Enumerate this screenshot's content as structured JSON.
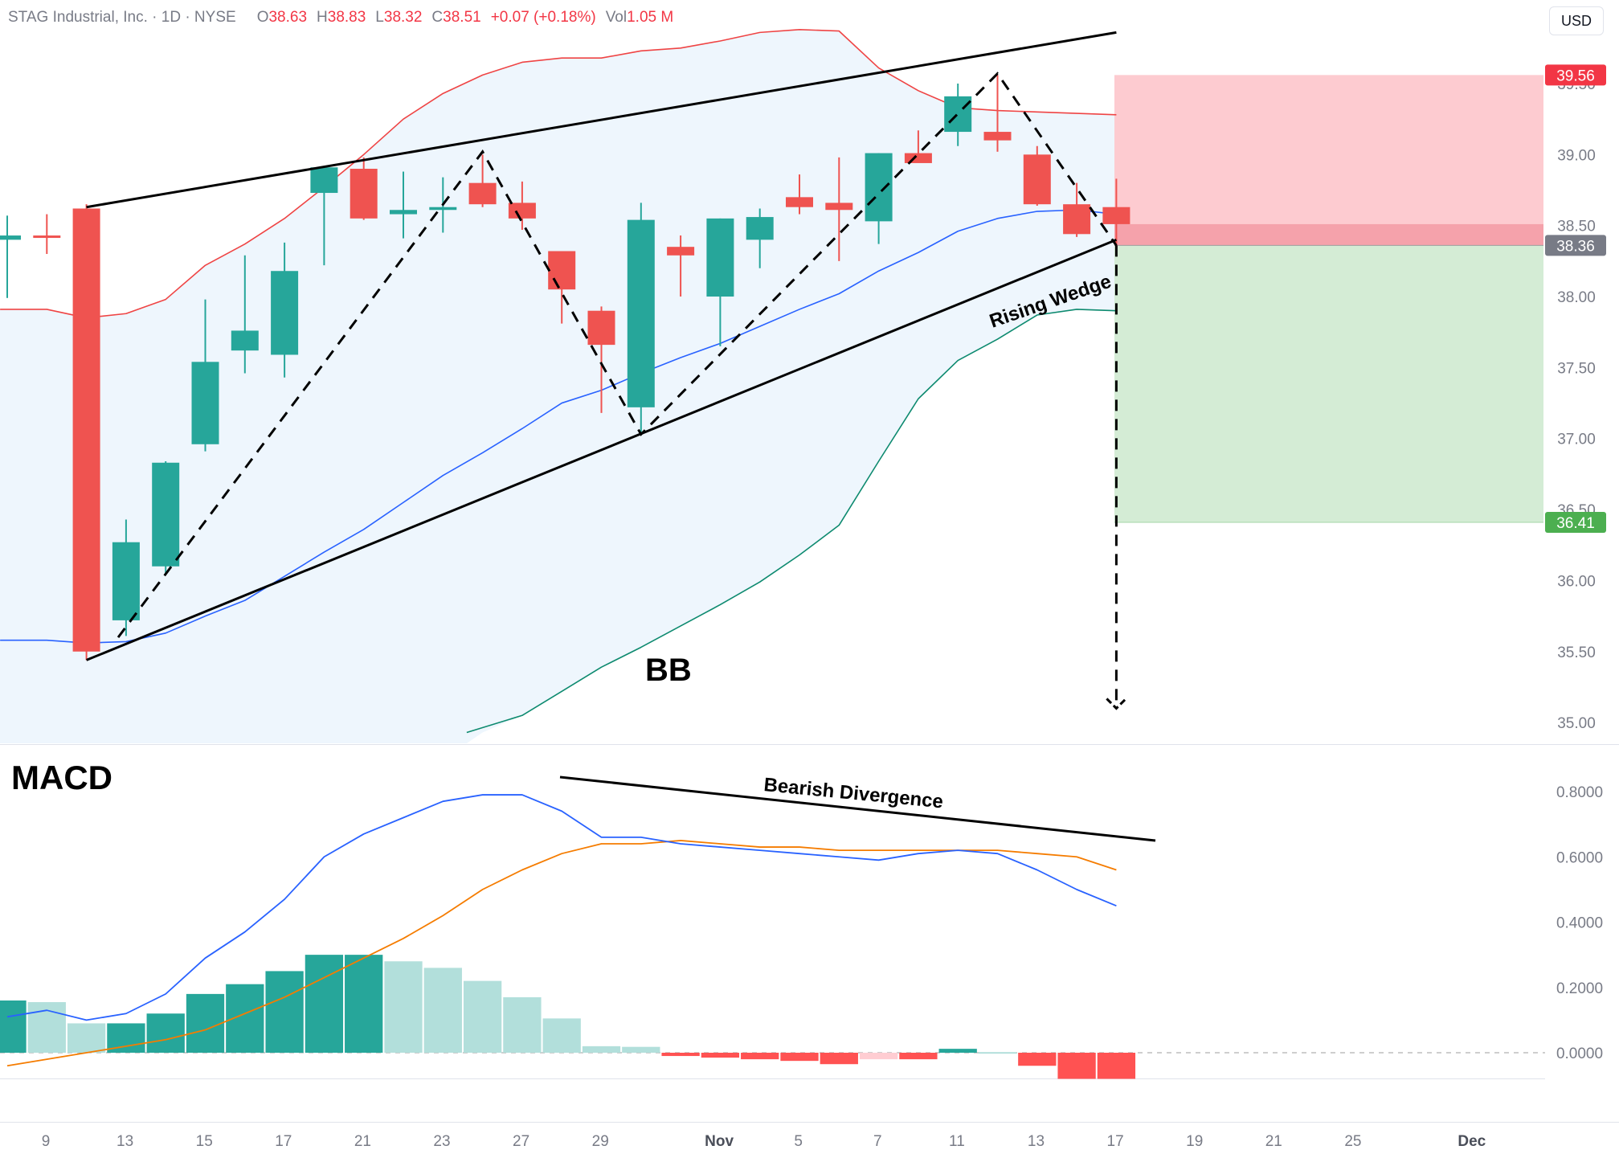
{
  "header": {
    "symbol_line": "STAG Industrial, Inc. · 1D · NYSE",
    "open_label": "O",
    "open": "38.63",
    "high_label": "H",
    "high": "38.83",
    "low_label": "L",
    "low": "38.32",
    "close_label": "C",
    "close": "38.51",
    "change": "+0.07 (+0.18%)",
    "vol_label": "Vol",
    "vol": "1.05 M"
  },
  "currency_button": "USD",
  "colors": {
    "up": "#26a69a",
    "down": "#ef5350",
    "bb_upper": "#ef4444",
    "bb_middle": "#2962ff",
    "bb_lower": "#0d8a6f",
    "bb_fill": "#eef6fd",
    "macd": "#2962ff",
    "signal": "#f57c00",
    "stop_zone": "#fdcbd0",
    "target_zone": "#d4ecd5",
    "entry_zone": "#f5a2ab"
  },
  "chart_data": [
    {
      "type": "candlestick",
      "title": "STAG Industrial, Inc. · 1D · NYSE",
      "annotation_bb": "BB",
      "wedge_label": "Rising Wedge",
      "x_tick_labels": [
        {
          "label": "9",
          "day": 0
        },
        {
          "label": "13",
          "day": 2
        },
        {
          "label": "15",
          "day": 4
        },
        {
          "label": "17",
          "day": 6
        },
        {
          "label": "21",
          "day": 8
        },
        {
          "label": "23",
          "day": 10
        },
        {
          "label": "27",
          "day": 12
        },
        {
          "label": "29",
          "day": 14
        },
        {
          "label": "Nov",
          "day": 17
        },
        {
          "label": "5",
          "day": 19
        },
        {
          "label": "7",
          "day": 21
        },
        {
          "label": "11",
          "day": 23
        },
        {
          "label": "13",
          "day": 25
        },
        {
          "label": "17",
          "day": 27
        },
        {
          "label": "19",
          "day": 29
        },
        {
          "label": "21",
          "day": 31
        },
        {
          "label": "25",
          "day": 33
        },
        {
          "label": "Dec",
          "day": 36
        }
      ],
      "y_ticks": [
        35.0,
        35.5,
        36.0,
        36.5,
        37.0,
        37.5,
        38.0,
        38.5,
        39.0,
        39.5
      ],
      "y_tick_labels": [
        "35.00",
        "35.50",
        "36.00",
        "36.50",
        "37.00",
        "37.50",
        "38.00",
        "38.50",
        "39.00",
        "39.50"
      ],
      "ylim": [
        34.93,
        40.08
      ],
      "candles": [
        {
          "day": 0,
          "o": 38.4,
          "h": 38.57,
          "l": 37.99,
          "c": 38.43
        },
        {
          "day": 1,
          "o": 38.43,
          "h": 38.58,
          "l": 38.3,
          "c": 38.42
        },
        {
          "day": 2,
          "o": 38.62,
          "h": 38.65,
          "l": 35.44,
          "c": 35.5
        },
        {
          "day": 3,
          "o": 35.72,
          "h": 36.43,
          "l": 35.61,
          "c": 36.27
        },
        {
          "day": 4,
          "o": 36.1,
          "h": 36.84,
          "l": 36.04,
          "c": 36.83
        },
        {
          "day": 5,
          "o": 36.96,
          "h": 37.98,
          "l": 36.91,
          "c": 37.54
        },
        {
          "day": 6,
          "o": 37.62,
          "h": 38.29,
          "l": 37.46,
          "c": 37.76
        },
        {
          "day": 7,
          "o": 37.59,
          "h": 38.38,
          "l": 37.43,
          "c": 38.18
        },
        {
          "day": 8,
          "o": 38.73,
          "h": 38.88,
          "l": 38.22,
          "c": 38.91
        },
        {
          "day": 9,
          "o": 38.9,
          "h": 38.98,
          "l": 38.54,
          "c": 38.55
        },
        {
          "day": 10,
          "o": 38.58,
          "h": 38.88,
          "l": 38.41,
          "c": 38.61
        },
        {
          "day": 11,
          "o": 38.61,
          "h": 38.84,
          "l": 38.45,
          "c": 38.63
        },
        {
          "day": 12,
          "o": 38.8,
          "h": 39.0,
          "l": 38.63,
          "c": 38.65
        },
        {
          "day": 13,
          "o": 38.66,
          "h": 38.81,
          "l": 38.47,
          "c": 38.55
        },
        {
          "day": 14,
          "o": 38.32,
          "h": 38.32,
          "l": 37.81,
          "c": 38.05
        },
        {
          "day": 15,
          "o": 37.9,
          "h": 37.93,
          "l": 37.18,
          "c": 37.66
        },
        {
          "day": 16,
          "o": 37.22,
          "h": 38.66,
          "l": 37.04,
          "c": 38.54
        },
        {
          "day": 17,
          "o": 38.35,
          "h": 38.43,
          "l": 38.0,
          "c": 38.29
        },
        {
          "day": 18,
          "o": 38.0,
          "h": 38.55,
          "l": 37.65,
          "c": 38.55
        },
        {
          "day": 19,
          "o": 38.4,
          "h": 38.62,
          "l": 38.2,
          "c": 38.56
        },
        {
          "day": 20,
          "o": 38.7,
          "h": 38.86,
          "l": 38.58,
          "c": 38.63
        },
        {
          "day": 21,
          "o": 38.66,
          "h": 38.98,
          "l": 38.25,
          "c": 38.61
        },
        {
          "day": 22,
          "o": 38.53,
          "h": 39.01,
          "l": 38.37,
          "c": 39.01
        },
        {
          "day": 23,
          "o": 39.01,
          "h": 39.17,
          "l": 38.95,
          "c": 38.94
        },
        {
          "day": 24,
          "o": 39.16,
          "h": 39.5,
          "l": 39.06,
          "c": 39.41
        },
        {
          "day": 25,
          "o": 39.16,
          "h": 39.56,
          "l": 39.02,
          "c": 39.1
        },
        {
          "day": 26,
          "o": 39.0,
          "h": 39.06,
          "l": 38.64,
          "c": 38.65
        },
        {
          "day": 27,
          "o": 38.65,
          "h": 38.8,
          "l": 38.42,
          "c": 38.44
        },
        {
          "day": 28,
          "o": 38.63,
          "h": 38.83,
          "l": 38.32,
          "c": 38.51
        }
      ],
      "bb_upper": [
        {
          "day": 0,
          "v": 37.91
        },
        {
          "day": 1,
          "v": 37.91
        },
        {
          "day": 2,
          "v": 37.85
        },
        {
          "day": 3,
          "v": 37.88
        },
        {
          "day": 4,
          "v": 37.98
        },
        {
          "day": 5,
          "v": 38.22
        },
        {
          "day": 6,
          "v": 38.37
        },
        {
          "day": 7,
          "v": 38.55
        },
        {
          "day": 8,
          "v": 38.77
        },
        {
          "day": 9,
          "v": 39.0
        },
        {
          "day": 10,
          "v": 39.25
        },
        {
          "day": 11,
          "v": 39.43
        },
        {
          "day": 12,
          "v": 39.56
        },
        {
          "day": 13,
          "v": 39.65
        },
        {
          "day": 14,
          "v": 39.68
        },
        {
          "day": 15,
          "v": 39.68
        },
        {
          "day": 16,
          "v": 39.73
        },
        {
          "day": 17,
          "v": 39.75
        },
        {
          "day": 18,
          "v": 39.8
        },
        {
          "day": 19,
          "v": 39.86
        },
        {
          "day": 20,
          "v": 39.88
        },
        {
          "day": 21,
          "v": 39.87
        },
        {
          "day": 22,
          "v": 39.61
        },
        {
          "day": 23,
          "v": 39.45
        },
        {
          "day": 24,
          "v": 39.33
        },
        {
          "day": 25,
          "v": 39.31
        },
        {
          "day": 26,
          "v": 39.3
        },
        {
          "day": 27,
          "v": 39.29
        },
        {
          "day": 28,
          "v": 39.28
        }
      ],
      "bb_middle": [
        {
          "day": 0,
          "v": 35.58
        },
        {
          "day": 1,
          "v": 35.58
        },
        {
          "day": 2,
          "v": 35.56
        },
        {
          "day": 3,
          "v": 35.57
        },
        {
          "day": 4,
          "v": 35.63
        },
        {
          "day": 5,
          "v": 35.75
        },
        {
          "day": 6,
          "v": 35.86
        },
        {
          "day": 7,
          "v": 36.03
        },
        {
          "day": 8,
          "v": 36.2
        },
        {
          "day": 9,
          "v": 36.36
        },
        {
          "day": 10,
          "v": 36.55
        },
        {
          "day": 11,
          "v": 36.74
        },
        {
          "day": 12,
          "v": 36.9
        },
        {
          "day": 13,
          "v": 37.07
        },
        {
          "day": 14,
          "v": 37.25
        },
        {
          "day": 15,
          "v": 37.34
        },
        {
          "day": 16,
          "v": 37.46
        },
        {
          "day": 17,
          "v": 37.57
        },
        {
          "day": 18,
          "v": 37.67
        },
        {
          "day": 19,
          "v": 37.79
        },
        {
          "day": 20,
          "v": 37.91
        },
        {
          "day": 21,
          "v": 38.02
        },
        {
          "day": 22,
          "v": 38.18
        },
        {
          "day": 23,
          "v": 38.31
        },
        {
          "day": 24,
          "v": 38.46
        },
        {
          "day": 25,
          "v": 38.55
        },
        {
          "day": 26,
          "v": 38.6
        },
        {
          "day": 27,
          "v": 38.61
        },
        {
          "day": 28,
          "v": 38.58
        }
      ],
      "bb_lower": [
        {
          "day": 12,
          "v": 34.93
        },
        {
          "day": 13,
          "v": 35.05
        },
        {
          "day": 14,
          "v": 35.22
        },
        {
          "day": 15,
          "v": 35.39
        },
        {
          "day": 16,
          "v": 35.53
        },
        {
          "day": 17,
          "v": 35.68
        },
        {
          "day": 18,
          "v": 35.83
        },
        {
          "day": 19,
          "v": 35.99
        },
        {
          "day": 20,
          "v": 36.18
        },
        {
          "day": 21,
          "v": 36.39
        },
        {
          "day": 22,
          "v": 36.84
        },
        {
          "day": 23,
          "v": 37.28
        },
        {
          "day": 24,
          "v": 37.55
        },
        {
          "day": 25,
          "v": 37.7
        },
        {
          "day": 26,
          "v": 37.87
        },
        {
          "day": 27,
          "v": 37.91
        },
        {
          "day": 28,
          "v": 37.9
        }
      ],
      "trade": {
        "stop": 39.56,
        "entry": 38.36,
        "target": 36.41,
        "entry_zone_top": 38.51,
        "stop_label": "39.56",
        "entry_label": "38.36",
        "target_label": "36.41",
        "projection_end": 35.1
      }
    },
    {
      "type": "bar",
      "title": "MACD",
      "annotation": "Bearish Divergence",
      "y_ticks": [
        0.0,
        0.2,
        0.4,
        0.6,
        0.8
      ],
      "y_tick_labels": [
        "0.0000",
        "0.2000",
        "0.4000",
        "0.6000",
        "0.8000"
      ],
      "ylim": [
        -0.08,
        0.84
      ],
      "histogram": [
        0.16,
        0.155,
        0.09,
        0.09,
        0.12,
        0.18,
        0.21,
        0.25,
        0.3,
        0.3,
        0.28,
        0.26,
        0.22,
        0.17,
        0.105,
        0.02,
        0.018,
        -0.01,
        -0.015,
        -0.02,
        -0.025,
        -0.035,
        -0.02,
        -0.02,
        0.012,
        0.002,
        -0.04,
        -0.08,
        -0.08
      ],
      "macd": [
        0.11,
        0.13,
        0.1,
        0.12,
        0.18,
        0.29,
        0.37,
        0.47,
        0.6,
        0.67,
        0.72,
        0.77,
        0.79,
        0.79,
        0.74,
        0.66,
        0.66,
        0.64,
        0.63,
        0.62,
        0.61,
        0.6,
        0.59,
        0.61,
        0.62,
        0.61,
        0.56,
        0.5,
        0.45
      ],
      "signal": [
        -0.04,
        -0.02,
        0.0,
        0.02,
        0.04,
        0.07,
        0.12,
        0.17,
        0.23,
        0.29,
        0.35,
        0.42,
        0.5,
        0.56,
        0.61,
        0.64,
        0.64,
        0.65,
        0.64,
        0.63,
        0.63,
        0.62,
        0.62,
        0.62,
        0.62,
        0.62,
        0.61,
        0.6,
        0.56
      ]
    }
  ]
}
